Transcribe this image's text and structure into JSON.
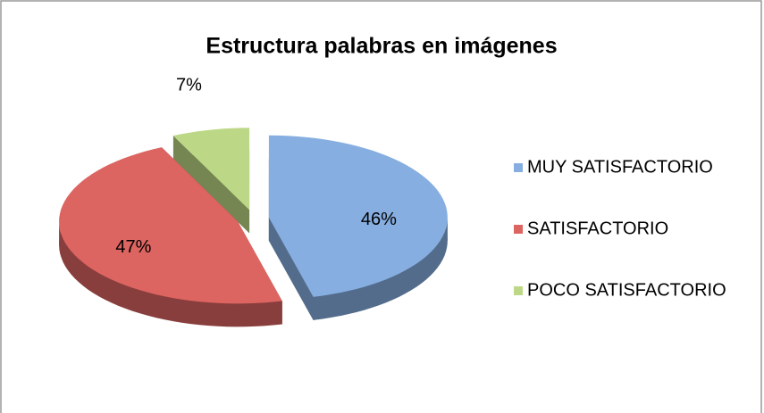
{
  "chart_data": {
    "type": "pie3d",
    "title": "Estructura palabras en imágenes",
    "categories": [
      "MUY SATISFACTORIO",
      "SATISFACTORIO",
      "POCO SATISFACTORIO"
    ],
    "values": [
      46,
      47,
      7
    ],
    "value_labels": [
      "46%",
      "47%",
      "7%"
    ],
    "colors": [
      "#86aee0",
      "#dc6461",
      "#bcd886"
    ],
    "legend": "right"
  }
}
